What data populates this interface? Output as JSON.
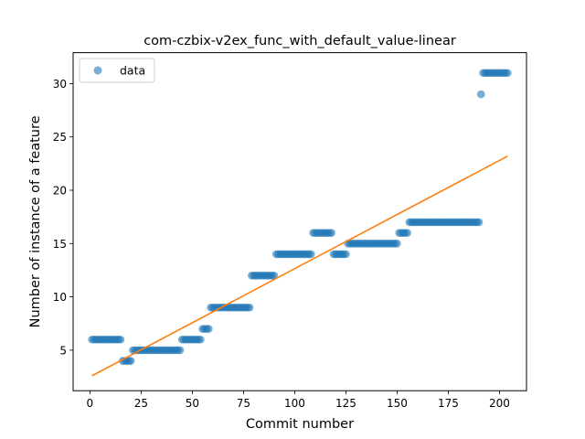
{
  "chart_data": {
    "type": "scatter",
    "title": "com-czbix-v2ex_func_with_default_value-linear",
    "xlabel": "Commit number",
    "ylabel": "Number of instance of a feature",
    "xlim": [
      -8.2,
      213.2
    ],
    "ylim": [
      1.2,
      32.9
    ],
    "xticks": [
      0,
      25,
      50,
      75,
      100,
      125,
      150,
      175,
      200
    ],
    "yticks": [
      5,
      10,
      15,
      20,
      25,
      30
    ],
    "legend": {
      "position": "top-left",
      "entries": [
        "data"
      ]
    },
    "colors": {
      "scatter": "#1f77b4",
      "fit": "#ff7f0e"
    },
    "series": [
      {
        "name": "data",
        "kind": "scatter",
        "segments": [
          {
            "x_start": 1,
            "x_end": 16,
            "y": 6
          },
          {
            "x_start": 16,
            "x_end": 21,
            "y": 4
          },
          {
            "x_start": 21,
            "x_end": 45,
            "y": 5
          },
          {
            "x_start": 45,
            "x_end": 55,
            "y": 6
          },
          {
            "x_start": 55,
            "x_end": 59,
            "y": 7
          },
          {
            "x_start": 59,
            "x_end": 79,
            "y": 9
          },
          {
            "x_start": 79,
            "x_end": 91,
            "y": 12
          },
          {
            "x_start": 91,
            "x_end": 109,
            "y": 14
          },
          {
            "x_start": 109,
            "x_end": 119,
            "y": 16
          },
          {
            "x_start": 119,
            "x_end": 126,
            "y": 14
          },
          {
            "x_start": 126,
            "x_end": 151,
            "y": 15
          },
          {
            "x_start": 151,
            "x_end": 156,
            "y": 16
          },
          {
            "x_start": 156,
            "x_end": 191,
            "y": 17
          },
          {
            "x_start": 191,
            "x_end": 192,
            "y": 29
          },
          {
            "x_start": 192,
            "x_end": 205,
            "y": 31
          }
        ]
      },
      {
        "name": "",
        "kind": "line",
        "x": [
          1,
          204
        ],
        "y": [
          2.6,
          23.2
        ]
      }
    ]
  }
}
